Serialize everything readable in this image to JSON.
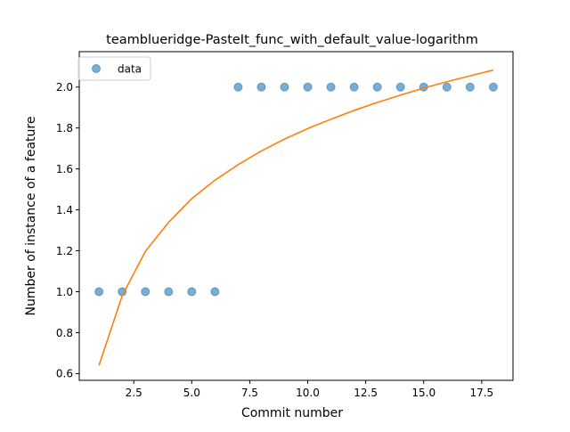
{
  "chart_data": {
    "type": "scatter",
    "title": "teamblueridge-PasteIt_func_with_default_value-logarithm",
    "xlabel": "Commit number",
    "ylabel": "Number of instance of a feature",
    "xlim": [
      0.15,
      18.85
    ],
    "ylim": [
      0.567,
      2.173
    ],
    "x_ticks": [
      2.5,
      5.0,
      7.5,
      10.0,
      12.5,
      15.0,
      17.5
    ],
    "x_tick_labels": [
      "2.5",
      "5.0",
      "7.5",
      "10.0",
      "12.5",
      "15.0",
      "17.5"
    ],
    "y_ticks": [
      0.6,
      0.8,
      1.0,
      1.2,
      1.4,
      1.6,
      1.8,
      2.0
    ],
    "y_tick_labels": [
      "0.6",
      "0.8",
      "1.0",
      "1.2",
      "1.4",
      "1.6",
      "1.8",
      "2.0"
    ],
    "grid": false,
    "legend_position": "top-left",
    "series": [
      {
        "name": "data",
        "kind": "scatter",
        "color": "#1f77b4",
        "x": [
          1,
          2,
          3,
          4,
          5,
          6,
          7,
          8,
          9,
          10,
          11,
          12,
          13,
          14,
          15,
          16,
          17,
          18
        ],
        "y": [
          1,
          1,
          1,
          1,
          1,
          1,
          2,
          2,
          2,
          2,
          2,
          2,
          2,
          2,
          2,
          2,
          2,
          2
        ]
      },
      {
        "kind": "line",
        "color": "#ff7f0e",
        "x": [
          1,
          2,
          3,
          4,
          5,
          6,
          7,
          8,
          9,
          10,
          11,
          12,
          13,
          14,
          15,
          16,
          17,
          18
        ],
        "y": [
          0.64,
          0.98,
          1.197,
          1.339,
          1.455,
          1.545,
          1.621,
          1.688,
          1.746,
          1.797,
          1.843,
          1.886,
          1.925,
          1.961,
          1.995,
          2.026,
          2.055,
          2.083
        ]
      }
    ]
  }
}
